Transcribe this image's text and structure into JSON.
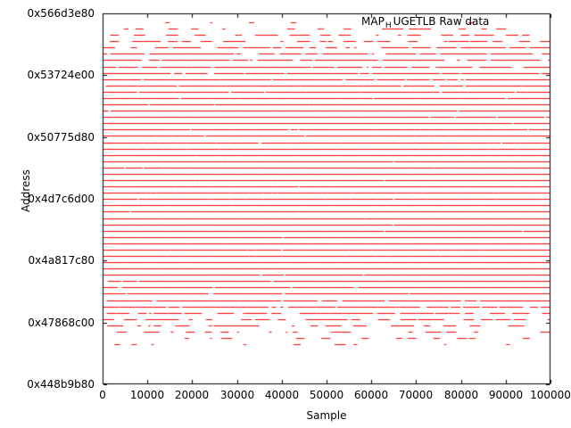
{
  "chart_data": {
    "type": "scatter",
    "legend": {
      "prefix": "MAP",
      "sub": "H",
      "suffix": "UGETLB Raw data",
      "position": "top-right-inside"
    },
    "xlabel": "Sample",
    "ylabel": "Address",
    "xlim": [
      0,
      100000
    ],
    "x_ticks": [
      "0",
      "10000",
      "20000",
      "30000",
      "40000",
      "50000",
      "60000",
      "70000",
      "80000",
      "90000",
      "100000"
    ],
    "y_ticks_top_to_bottom": [
      "0x566d3e80",
      "0x53724e00",
      "0x50775d80",
      "0x4d7c6d00",
      "0x4a817c80",
      "0x47868c00",
      "0x448b9b80"
    ],
    "grid": false,
    "colors": {
      "points": "#ff0000",
      "frame": "#000000",
      "background": "#ffffff",
      "text": "#000000"
    },
    "rows_note": "horizontal rows of point-dots; y = fraction of plot height from top, d = dash coverage density 0..1",
    "rows": [
      {
        "y": 0.024,
        "d": 0.08
      },
      {
        "y": 0.0411,
        "d": 0.25
      },
      {
        "y": 0.0581,
        "d": 0.35
      },
      {
        "y": 0.0751,
        "d": 0.45
      },
      {
        "y": 0.0921,
        "d": 0.52
      },
      {
        "y": 0.1091,
        "d": 0.6
      },
      {
        "y": 0.1262,
        "d": 0.66
      },
      {
        "y": 0.1432,
        "d": 0.72
      },
      {
        "y": 0.1602,
        "d": 0.78
      },
      {
        "y": 0.1772,
        "d": 0.82
      },
      {
        "y": 0.1942,
        "d": 0.87
      },
      {
        "y": 0.2113,
        "d": 0.9
      },
      {
        "y": 0.2283,
        "d": 0.91
      },
      {
        "y": 0.2453,
        "d": 0.92
      },
      {
        "y": 0.2623,
        "d": 0.93
      },
      {
        "y": 0.2793,
        "d": 0.94
      },
      {
        "y": 0.2964,
        "d": 0.95
      },
      {
        "y": 0.3134,
        "d": 0.95
      },
      {
        "y": 0.3304,
        "d": 0.96
      },
      {
        "y": 0.3474,
        "d": 0.97
      },
      {
        "y": 0.3644,
        "d": 0.975
      },
      {
        "y": 0.3815,
        "d": 0.98
      },
      {
        "y": 0.3985,
        "d": 0.98
      },
      {
        "y": 0.4155,
        "d": 0.985
      },
      {
        "y": 0.4325,
        "d": 0.985
      },
      {
        "y": 0.4495,
        "d": 0.99
      },
      {
        "y": 0.4666,
        "d": 0.99
      },
      {
        "y": 0.4836,
        "d": 0.99
      },
      {
        "y": 0.5006,
        "d": 0.99
      },
      {
        "y": 0.5176,
        "d": 0.99
      },
      {
        "y": 0.5346,
        "d": 0.99
      },
      {
        "y": 0.5517,
        "d": 0.99
      },
      {
        "y": 0.5687,
        "d": 0.985
      },
      {
        "y": 0.5857,
        "d": 0.985
      },
      {
        "y": 0.6027,
        "d": 0.98
      },
      {
        "y": 0.6197,
        "d": 0.98
      },
      {
        "y": 0.6368,
        "d": 0.98
      },
      {
        "y": 0.6538,
        "d": 0.975
      },
      {
        "y": 0.6708,
        "d": 0.97
      },
      {
        "y": 0.6878,
        "d": 0.95
      },
      {
        "y": 0.7048,
        "d": 0.92
      },
      {
        "y": 0.7219,
        "d": 0.89
      },
      {
        "y": 0.7389,
        "d": 0.85
      },
      {
        "y": 0.7559,
        "d": 0.8
      },
      {
        "y": 0.7729,
        "d": 0.74
      },
      {
        "y": 0.7899,
        "d": 0.66
      },
      {
        "y": 0.807,
        "d": 0.56
      },
      {
        "y": 0.824,
        "d": 0.46
      },
      {
        "y": 0.841,
        "d": 0.36
      },
      {
        "y": 0.858,
        "d": 0.27
      },
      {
        "y": 0.875,
        "d": 0.18
      },
      {
        "y": 0.8921,
        "d": 0.1
      }
    ]
  }
}
